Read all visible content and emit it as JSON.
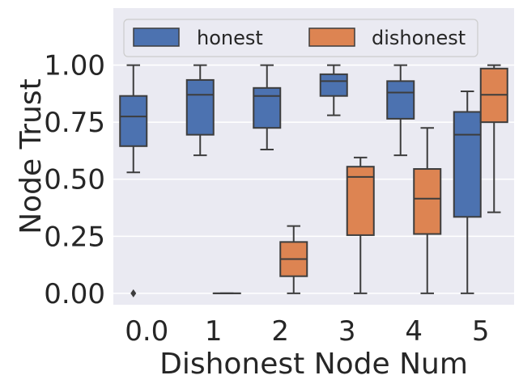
{
  "chart_data": {
    "type": "boxplot",
    "title": "",
    "xlabel": "Dishonest Node Num",
    "ylabel": "Node Trust",
    "ylim": [
      -0.05,
      1.25
    ],
    "yticks": [
      0.0,
      0.25,
      0.5,
      0.75,
      1.0
    ],
    "ytick_labels": [
      "0.00",
      "0.25",
      "0.50",
      "0.75",
      "1.00"
    ],
    "categories": [
      "0.0",
      "1",
      "2",
      "3",
      "4",
      "5"
    ],
    "grid": true,
    "legend_position": "top",
    "series": [
      {
        "name": "honest",
        "color": "#4c72b0",
        "boxes": [
          {
            "category": "0.0",
            "whisker_low": 0.53,
            "q1": 0.645,
            "median": 0.775,
            "q3": 0.865,
            "whisker_high": 1.0,
            "outliers": [
              0.0
            ]
          },
          {
            "category": "1",
            "whisker_low": 0.605,
            "q1": 0.695,
            "median": 0.87,
            "q3": 0.935,
            "whisker_high": 1.0,
            "outliers": []
          },
          {
            "category": "2",
            "whisker_low": 0.63,
            "q1": 0.725,
            "median": 0.865,
            "q3": 0.9,
            "whisker_high": 1.0,
            "outliers": []
          },
          {
            "category": "3",
            "whisker_low": 0.78,
            "q1": 0.865,
            "median": 0.93,
            "q3": 0.96,
            "whisker_high": 1.0,
            "outliers": []
          },
          {
            "category": "4",
            "whisker_low": 0.605,
            "q1": 0.765,
            "median": 0.88,
            "q3": 0.93,
            "whisker_high": 1.0,
            "outliers": []
          },
          {
            "category": "5",
            "whisker_low": 0.0,
            "q1": 0.335,
            "median": 0.695,
            "q3": 0.795,
            "whisker_high": 0.885,
            "outliers": []
          }
        ]
      },
      {
        "name": "dishonest",
        "color": "#dd8452",
        "boxes": [
          {
            "category": "1",
            "whisker_low": 0.0,
            "q1": 0.0,
            "median": 0.0,
            "q3": 0.0,
            "whisker_high": 0.0,
            "outliers": []
          },
          {
            "category": "2",
            "whisker_low": 0.0,
            "q1": 0.075,
            "median": 0.15,
            "q3": 0.225,
            "whisker_high": 0.295,
            "outliers": []
          },
          {
            "category": "3",
            "whisker_low": 0.0,
            "q1": 0.255,
            "median": 0.51,
            "q3": 0.555,
            "whisker_high": 0.595,
            "outliers": []
          },
          {
            "category": "4",
            "whisker_low": 0.0,
            "q1": 0.26,
            "median": 0.415,
            "q3": 0.545,
            "whisker_high": 0.725,
            "outliers": []
          },
          {
            "category": "5",
            "whisker_low": 0.355,
            "q1": 0.75,
            "median": 0.87,
            "q3": 0.985,
            "whisker_high": 1.0,
            "outliers": []
          }
        ]
      }
    ]
  }
}
